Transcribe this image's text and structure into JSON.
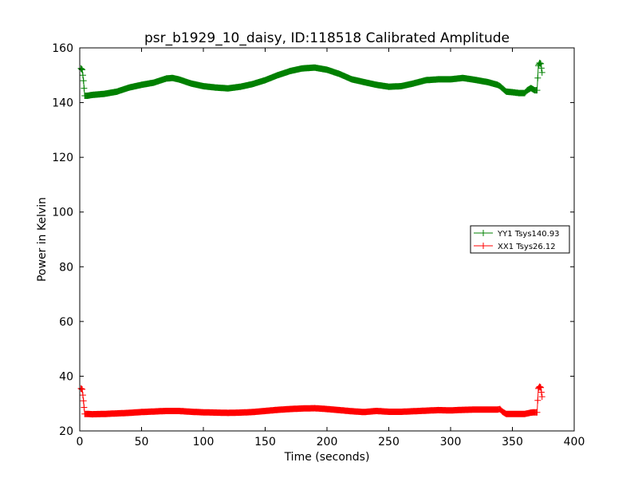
{
  "chart_data": {
    "type": "line",
    "title": "psr_b1929_10_daisy, ID:118518 Calibrated Amplitude",
    "xlabel": "Time (seconds)",
    "ylabel": "Power in Kelvin",
    "xlim": [
      0,
      400
    ],
    "ylim": [
      20,
      160
    ],
    "xticks": [
      0,
      50,
      100,
      150,
      200,
      250,
      300,
      350,
      400
    ],
    "yticks": [
      20,
      40,
      60,
      80,
      100,
      120,
      140,
      160
    ],
    "xtick_labels": [
      "0",
      "50",
      "100",
      "150",
      "200",
      "250",
      "300",
      "350",
      "400"
    ],
    "ytick_labels": [
      "20",
      "40",
      "60",
      "80",
      "100",
      "120",
      "140",
      "160"
    ],
    "grid": false,
    "legend_position": "center-right",
    "marker": "+",
    "series": [
      {
        "name": "YY1 Tsys140.93",
        "color": "#008000",
        "x": [
          1,
          2,
          3,
          4,
          6,
          10,
          15,
          20,
          30,
          40,
          50,
          60,
          70,
          75,
          80,
          90,
          100,
          110,
          120,
          130,
          140,
          150,
          160,
          170,
          180,
          190,
          200,
          210,
          220,
          230,
          240,
          250,
          260,
          270,
          280,
          290,
          300,
          310,
          320,
          330,
          338,
          340,
          345,
          350,
          355,
          360,
          362,
          365,
          368,
          370,
          371,
          372,
          373,
          374
        ],
        "values": [
          152.5,
          152.0,
          148.0,
          142.5,
          142.5,
          142.8,
          143.0,
          143.2,
          144.0,
          145.5,
          146.5,
          147.3,
          148.8,
          149.0,
          148.5,
          147.0,
          146.0,
          145.5,
          145.2,
          145.8,
          146.8,
          148.2,
          150.0,
          151.5,
          152.5,
          152.8,
          152.0,
          150.5,
          148.5,
          147.5,
          146.5,
          145.8,
          146.0,
          147.0,
          148.2,
          148.5,
          148.5,
          149.0,
          148.3,
          147.5,
          146.5,
          146.0,
          144.0,
          143.8,
          143.5,
          143.5,
          144.5,
          145.3,
          144.5,
          144.5,
          153.5,
          154.5,
          154.2,
          151.0
        ]
      },
      {
        "name": "XX1 Tsys26.12",
        "color": "#ff0000",
        "x": [
          1,
          2,
          3,
          4,
          6,
          10,
          20,
          30,
          40,
          50,
          60,
          70,
          80,
          90,
          100,
          110,
          120,
          130,
          140,
          150,
          160,
          170,
          180,
          190,
          200,
          210,
          220,
          230,
          240,
          250,
          260,
          270,
          280,
          290,
          300,
          310,
          320,
          330,
          338,
          340,
          342,
          345,
          350,
          355,
          360,
          365,
          368,
          370,
          371,
          372,
          373,
          374
        ],
        "values": [
          35.5,
          35.2,
          31.0,
          26.2,
          26.2,
          26.1,
          26.2,
          26.4,
          26.6,
          26.9,
          27.1,
          27.3,
          27.3,
          27.0,
          26.8,
          26.7,
          26.6,
          26.7,
          26.9,
          27.3,
          27.7,
          28.0,
          28.2,
          28.3,
          28.0,
          27.6,
          27.2,
          26.9,
          27.3,
          27.0,
          27.0,
          27.2,
          27.4,
          27.6,
          27.5,
          27.7,
          27.8,
          27.8,
          27.8,
          28.0,
          27.0,
          26.2,
          26.2,
          26.2,
          26.2,
          26.7,
          26.8,
          26.8,
          35.5,
          36.2,
          35.8,
          32.5
        ]
      }
    ]
  }
}
